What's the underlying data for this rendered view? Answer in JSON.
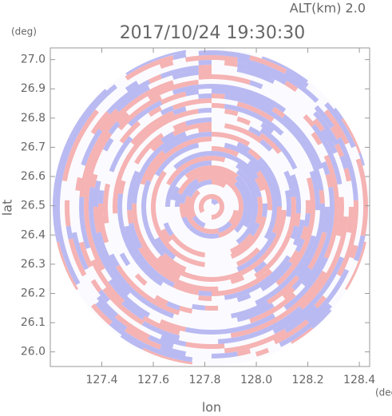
{
  "chart_data": {
    "type": "ppi",
    "title": "2017/10/24 19:30:30",
    "subtitle": "ALT(km) 2.0",
    "xlabel": "lon",
    "ylabel": "lat",
    "xunit": "(deg)",
    "yunit": "(deg)",
    "xlim": [
      127.2,
      128.44
    ],
    "ylim": [
      25.95,
      27.04
    ],
    "xticks": [
      127.4,
      127.6,
      127.8,
      {
        "value": 128,
        "label": "128.0"
      },
      128.2,
      128.4
    ],
    "yticks": [
      {
        "value": 26,
        "label": "26.0"
      },
      26.1,
      26.2,
      26.3,
      26.4,
      26.5,
      26.6,
      26.7,
      26.8,
      26.9,
      {
        "value": 27,
        "label": "27.0"
      }
    ],
    "colors": [
      "#f5b3b3",
      "#babaf2"
    ]
  }
}
